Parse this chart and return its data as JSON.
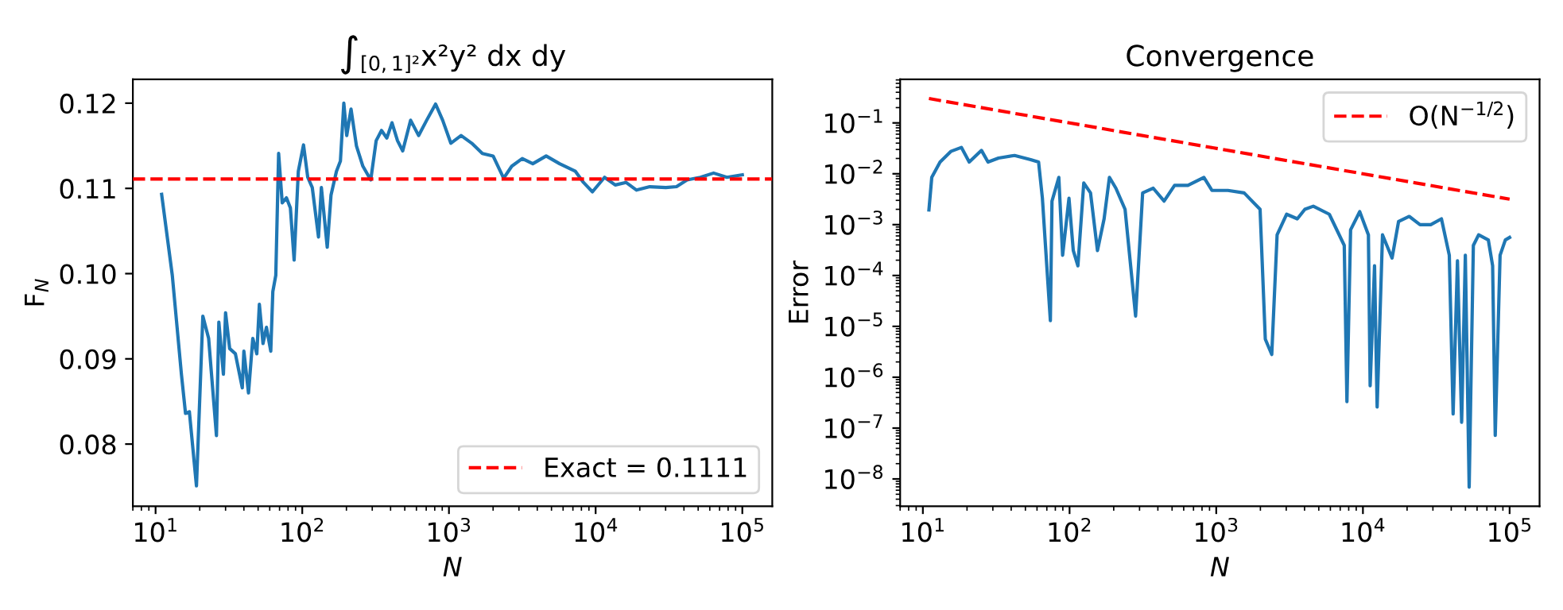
{
  "chart_data": [
    {
      "type": "line",
      "title": "∫$_{[0,1]²}$x²y² dx dy",
      "xlabel": "N",
      "ylabel": "F$_{N}$",
      "log": "x",
      "grid": false,
      "legend": "bottom right",
      "xlim": [
        7,
        160000
      ],
      "xticks": [
        {
          "value": 10,
          "label": "10$^{1}$"
        },
        {
          "value": 100,
          "label": "10$^{2}$"
        },
        {
          "value": 1000,
          "label": "10$^{3}$"
        },
        {
          "value": 10000,
          "label": "10$^{4}$"
        },
        {
          "value": 100000,
          "label": "10$^{5}$"
        }
      ],
      "ylim": [
        0.0727,
        0.1228
      ],
      "yticks": [
        {
          "value": 0.08,
          "label": "0.08"
        },
        {
          "value": 0.09,
          "label": "0.09"
        },
        {
          "value": 0.1,
          "label": "0.10"
        },
        {
          "value": 0.11,
          "label": "0.11"
        },
        {
          "value": 0.12,
          "label": "0.12"
        }
      ],
      "ref_lines": [
        {
          "axis": "y",
          "value": 0.1111,
          "label": "Exact = 0.1111",
          "color": "#ff0000",
          "line_style": "dashed"
        }
      ],
      "series": [
        {
          "color": "#1f77b4",
          "line_style": "solid",
          "x": [
            11,
            13,
            15,
            16,
            17,
            19,
            21,
            23,
            26,
            27,
            29,
            30,
            32,
            35,
            39,
            40,
            43,
            46,
            49,
            51,
            54,
            57,
            61,
            63,
            66,
            69,
            73,
            78,
            83,
            88,
            94,
            102,
            109,
            117,
            129,
            135,
            148,
            157,
            171,
            182,
            192,
            201,
            215,
            234,
            259,
            293,
            319,
            347,
            377,
            409,
            446,
            484,
            548,
            621,
            705,
            811,
            906,
            1030,
            1210,
            1430,
            1690,
            2000,
            2360,
            2680,
            3160,
            3730,
            4600,
            5680,
            7280,
            8260,
            9510,
            11500,
            13600,
            16100,
            19000,
            23400,
            30100,
            35600,
            42000,
            51800,
            63700,
            78500,
            100000
          ],
          "values": [
            0.1093,
            0.0998,
            0.0882,
            0.0836,
            0.0838,
            0.0751,
            0.095,
            0.0924,
            0.081,
            0.0943,
            0.0882,
            0.0954,
            0.0912,
            0.0906,
            0.0866,
            0.0909,
            0.086,
            0.0924,
            0.0906,
            0.0964,
            0.0918,
            0.0937,
            0.0909,
            0.0979,
            0.0998,
            0.1141,
            0.1083,
            0.1089,
            0.1077,
            0.1016,
            0.112,
            0.1151,
            0.1113,
            0.1101,
            0.1043,
            0.1101,
            0.1031,
            0.1092,
            0.112,
            0.1132,
            0.12,
            0.1162,
            0.1193,
            0.115,
            0.1126,
            0.111,
            0.1156,
            0.1168,
            0.1159,
            0.1177,
            0.1156,
            0.1144,
            0.118,
            0.1162,
            0.118,
            0.1199,
            0.118,
            0.1153,
            0.1162,
            0.1153,
            0.1141,
            0.1138,
            0.1112,
            0.1126,
            0.1135,
            0.1129,
            0.1138,
            0.1129,
            0.112,
            0.1107,
            0.1096,
            0.1113,
            0.1104,
            0.1107,
            0.1098,
            0.1102,
            0.1101,
            0.1102,
            0.111,
            0.1113,
            0.1118,
            0.1113,
            0.1116
          ]
        }
      ]
    },
    {
      "type": "line",
      "title": "Convergence",
      "xlabel": "N",
      "ylabel": "Error",
      "log": "xy",
      "grid": false,
      "legend": "top right",
      "xlim": [
        7,
        160000
      ],
      "xticks": [
        {
          "value": 10,
          "label": "10$^{1}$"
        },
        {
          "value": 100,
          "label": "10$^{2}$"
        },
        {
          "value": 1000,
          "label": "10$^{3}$"
        },
        {
          "value": 10000,
          "label": "10$^{4}$"
        },
        {
          "value": 100000,
          "label": "10$^{5}$"
        }
      ],
      "ylim": [
        2.9e-09,
        0.72
      ],
      "yticks": [
        {
          "value": 1e-08,
          "label": "10$^{−8}$"
        },
        {
          "value": 1e-07,
          "label": "10$^{−7}$"
        },
        {
          "value": 1e-06,
          "label": "10$^{−6}$"
        },
        {
          "value": 1e-05,
          "label": "10$^{−5}$"
        },
        {
          "value": 0.0001,
          "label": "10$^{−4}$"
        },
        {
          "value": 0.001,
          "label": "10$^{−3}$"
        },
        {
          "value": 0.01,
          "label": "10$^{−2}$"
        },
        {
          "value": 0.1,
          "label": "10$^{−1}$"
        }
      ],
      "series": [
        {
          "color": "#1f77b4",
          "line_style": "solid",
          "x": [
            11,
            11.5,
            13.1,
            15.5,
            18.3,
            20.7,
            25.1,
            27.8,
            32.8,
            42.2,
            54.3,
            61.5,
            65.3,
            68.5,
            74,
            75.9,
            84.5,
            89.7,
            99.1,
            106,
            114,
            125,
            139,
            155,
            172,
            187,
            207,
            239,
            282,
            315,
            372,
            441,
            520,
            641,
            824,
            935,
            1200,
            1550,
            1990,
            2160,
            2390,
            2600,
            3020,
            3570,
            4020,
            4590,
            5900,
            7460,
            7780,
            8240,
            9510,
            10900,
            11200,
            12000,
            12500,
            13600,
            15800,
            17500,
            20700,
            24500,
            29000,
            34300,
            38800,
            41200,
            44100,
            47100,
            49900,
            53000,
            56600,
            61500,
            71600,
            76600,
            79800,
            86100,
            93500,
            100000
          ],
          "values": [
            0.00195,
            0.0085,
            0.017,
            0.0275,
            0.033,
            0.017,
            0.0288,
            0.017,
            0.0204,
            0.0229,
            0.019,
            0.017,
            0.0033,
            0.00039,
            1.3e-05,
            0.0029,
            0.0085,
            0.00025,
            0.0033,
            0.00031,
            0.000155,
            0.0066,
            0.0042,
            0.00031,
            0.0013,
            0.0085,
            0.0052,
            0.002,
            1.6e-05,
            0.0042,
            0.0052,
            0.0029,
            0.0059,
            0.0059,
            0.0085,
            0.0047,
            0.0047,
            0.0042,
            0.002,
            5.6e-06,
            2.8e-06,
            0.00063,
            0.0016,
            0.0013,
            0.002,
            0.0023,
            0.0016,
            0.00039,
            3.3e-07,
            0.00079,
            0.0018,
            0.00063,
            6.8e-07,
            0.000155,
            2.6e-07,
            0.00063,
            0.00022,
            0.00115,
            0.00145,
            0.001,
            0.001,
            0.0013,
            0.00025,
            1.9e-07,
            0.000195,
            1.3e-07,
            0.00025,
            6.9e-09,
            0.00039,
            0.00063,
            0.0005,
            0.000155,
            7.2e-08,
            0.00025,
            0.0005,
            0.00056
          ]
        },
        {
          "name": "O(N$^{−1/2}$)",
          "color": "#ff0000",
          "line_style": "dashed",
          "x": [
            11,
            100000
          ],
          "values": [
            0.3015,
            0.00316
          ]
        }
      ]
    }
  ]
}
